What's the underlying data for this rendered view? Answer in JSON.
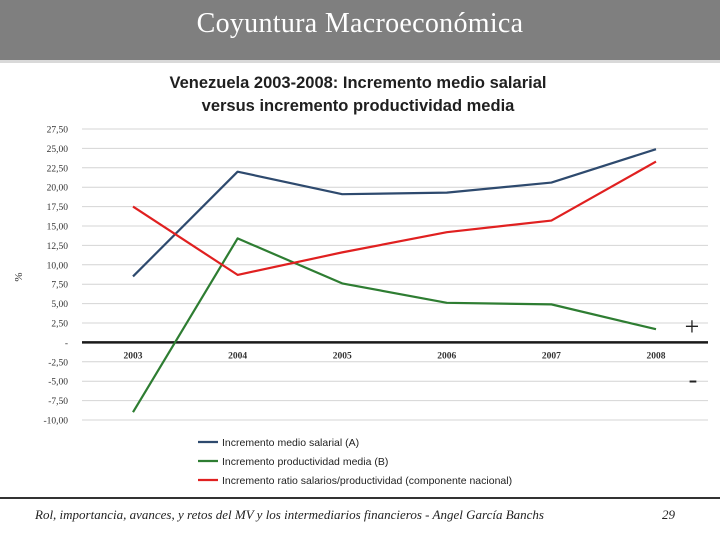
{
  "header": {
    "title": "Coyuntura Macroeconómica"
  },
  "footer": {
    "text": "Rol, importancia, avances, y retos del MV y los intermediarios financieros - Angel García Banchs",
    "page": "29"
  },
  "markers": {
    "plus": "+",
    "minus": "-"
  },
  "colors": {
    "series_a": "#2e4a6e",
    "series_b": "#2e7d32",
    "series_c": "#e02020",
    "zero_line": "#1a1a1a",
    "grid": "#d4d4d4"
  },
  "chart_data": {
    "type": "line",
    "title": [
      "Venezuela 2003-2008: Incremento medio salarial",
      "versus incremento productividad media"
    ],
    "ylabel": "%",
    "xlabel": "",
    "ylim": [
      -10,
      27.5
    ],
    "yticks": [
      27.5,
      25,
      22.5,
      20,
      17.5,
      15,
      12.5,
      10,
      7.5,
      5,
      2.5,
      0,
      -2.5,
      -5,
      -7.5,
      -10
    ],
    "ytick_labels": [
      "27,50",
      "25,00",
      "22,50",
      "20,00",
      "17,50",
      "15,00",
      "12,50",
      "10,00",
      "7,50",
      "5,00",
      "2,50",
      "-",
      "-2,50",
      "-5,00",
      "-7,50",
      "-10,00"
    ],
    "categories": [
      "2003",
      "2004",
      "2005",
      "2006",
      "2007",
      "2008"
    ],
    "grid": true,
    "legend_position": "bottom",
    "series": [
      {
        "name": "Incremento medio salarial (A)",
        "color": "#2e4a6e",
        "values": [
          8.5,
          22.0,
          19.1,
          19.3,
          20.6,
          24.9
        ]
      },
      {
        "name": "Incremento productividad media (B)",
        "color": "#2e7d32",
        "values": [
          -9.0,
          13.4,
          7.6,
          5.1,
          4.9,
          1.7
        ]
      },
      {
        "name": "Incremento ratio salarios/productividad (componente nacional)",
        "color": "#e02020",
        "values": [
          17.5,
          8.7,
          11.6,
          14.2,
          15.7,
          23.3
        ]
      }
    ]
  }
}
